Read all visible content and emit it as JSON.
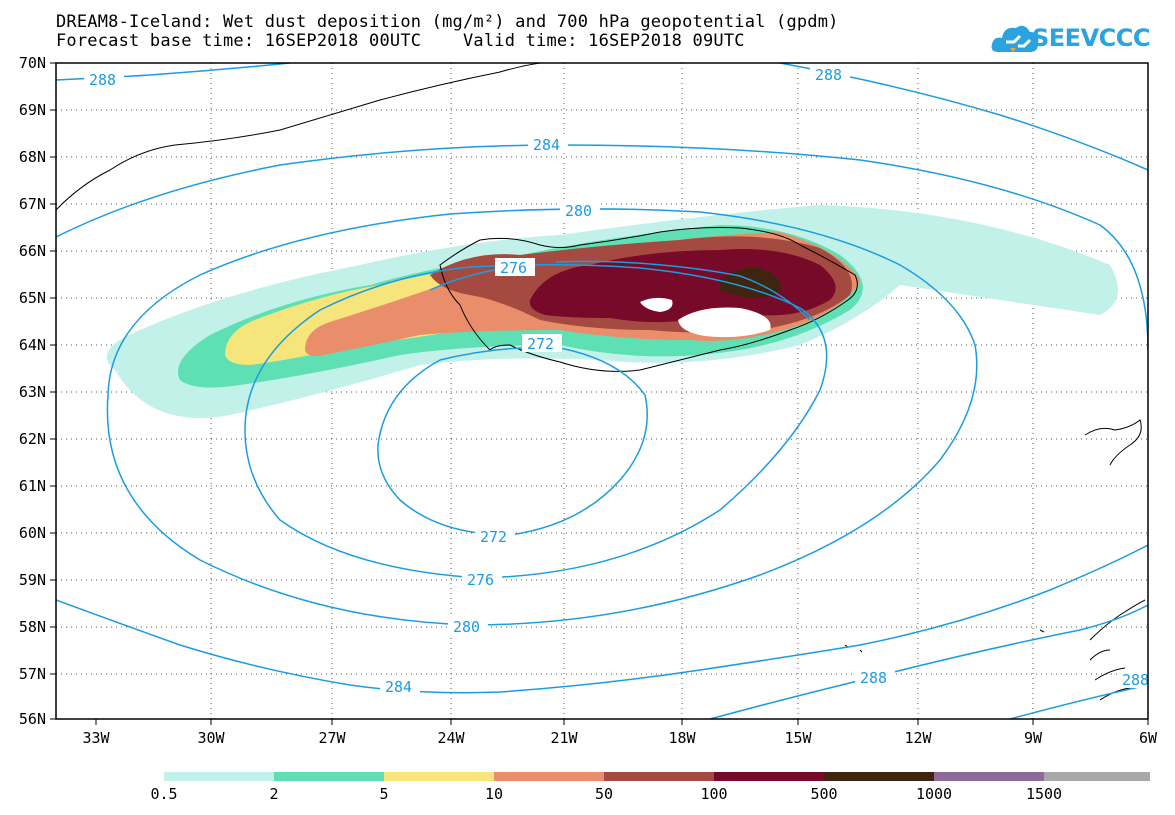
{
  "title": {
    "line1": "DREAM8-Iceland: Wet dust deposition (mg/m²) and 700 hPa geopotential (gpdm)",
    "line2": "Forecast base time: 16SEP2018 00UTC    Valid time: 16SEP2018 09UTC"
  },
  "logo": {
    "text": "SEEVCCC",
    "icon": "cloud-icon"
  },
  "map": {
    "lat_labels": [
      "70N",
      "69N",
      "68N",
      "67N",
      "66N",
      "65N",
      "64N",
      "63N",
      "62N",
      "61N",
      "60N",
      "59N",
      "58N",
      "57N",
      "56N"
    ],
    "lon_labels": [
      "33W",
      "30W",
      "27W",
      "24W",
      "21W",
      "18W",
      "15W",
      "12W",
      "9W",
      "6W"
    ],
    "contour_labels": [
      "288",
      "288",
      "284",
      "280",
      "276",
      "272",
      "272",
      "276",
      "280",
      "284",
      "288",
      "288"
    ],
    "contour_color": "#1c9ce2"
  },
  "legend": {
    "labels": [
      "0.5",
      "2",
      "5",
      "10",
      "50",
      "100",
      "500",
      "1000",
      "1500"
    ],
    "colors": [
      "#c2f1ea",
      "#5ee0b4",
      "#f5e57a",
      "#e98d6b",
      "#a54a40",
      "#780a29",
      "#3f2410",
      "#8e6a9b",
      "#a8a8a8"
    ]
  }
}
